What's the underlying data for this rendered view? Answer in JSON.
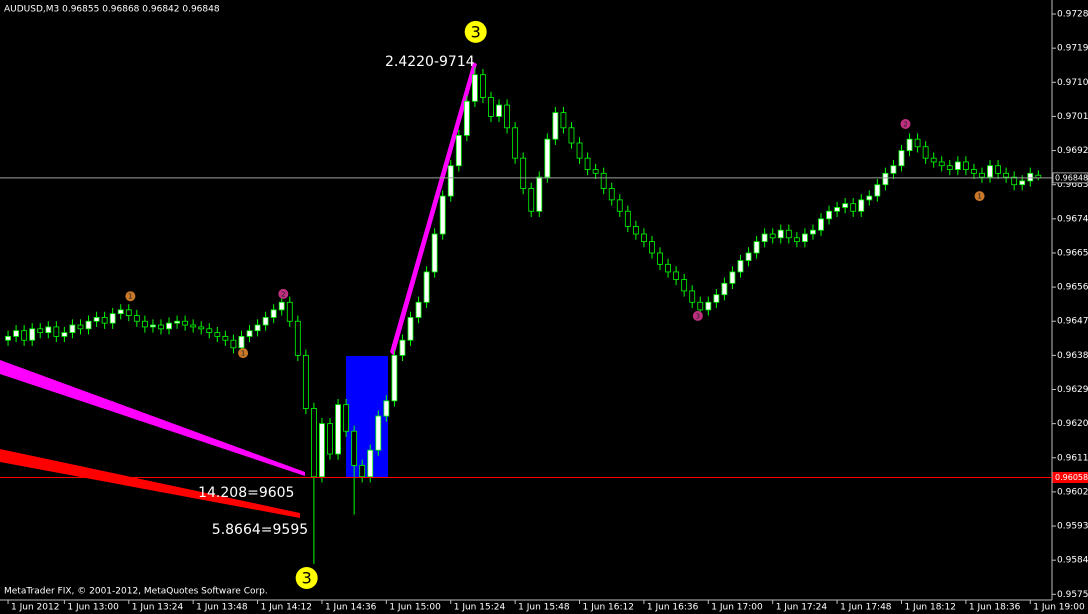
{
  "chart_data": {
    "type": "candlestick",
    "header": "AUDUSD,M3  0.96855 0.96868 0.96842 0.96848",
    "footer": "MetaTrader FIX, © 2001-2012, MetaQuotes Software Corp.",
    "up_color": "#ffffff",
    "down_color": "#000000",
    "wick_color": "#00ff00",
    "xlim": [
      -1,
      129.7
    ],
    "ylim": [
      0.95735,
      0.97317
    ],
    "xticks": [
      {
        "value": 0,
        "label": "1 Jun 2012"
      },
      {
        "value": 7,
        "label": "1 Jun 13:00"
      },
      {
        "value": 15,
        "label": "1 Jun 13:24"
      },
      {
        "value": 23,
        "label": "1 Jun 13:48"
      },
      {
        "value": 31,
        "label": "1 Jun 14:12"
      },
      {
        "value": 39,
        "label": "1 Jun 14:36"
      },
      {
        "value": 47,
        "label": "1 Jun 15:00"
      },
      {
        "value": 55,
        "label": "1 Jun 15:24"
      },
      {
        "value": 63,
        "label": "1 Jun 15:48"
      },
      {
        "value": 71,
        "label": "1 Jun 16:12"
      },
      {
        "value": 79,
        "label": "1 Jun 16:36"
      },
      {
        "value": 87,
        "label": "1 Jun 17:00"
      },
      {
        "value": 95,
        "label": "1 Jun 17:24"
      },
      {
        "value": 103,
        "label": "1 Jun 17:48"
      },
      {
        "value": 111,
        "label": "1 Jun 18:12"
      },
      {
        "value": 119,
        "label": "1 Jun 18:36"
      },
      {
        "value": 127,
        "label": "1 Jun 19:00"
      }
    ],
    "yticks": [
      {
        "value": 0.9728,
        "label": "0.97280"
      },
      {
        "value": 0.9719,
        "label": "0.97190"
      },
      {
        "value": 0.971,
        "label": "0.97100"
      },
      {
        "value": 0.9701,
        "label": "0.97010"
      },
      {
        "value": 0.9692,
        "label": "0.96920"
      },
      {
        "value": 0.9683,
        "label": "0.96830"
      },
      {
        "value": 0.9674,
        "label": "0.96740"
      },
      {
        "value": 0.9665,
        "label": "0.96650"
      },
      {
        "value": 0.9656,
        "label": "0.96560"
      },
      {
        "value": 0.9647,
        "label": "0.96470"
      },
      {
        "value": 0.9638,
        "label": "0.96380"
      },
      {
        "value": 0.9629,
        "label": "0.96290"
      },
      {
        "value": 0.962,
        "label": "0.96200"
      },
      {
        "value": 0.9611,
        "label": "0.96110"
      },
      {
        "value": 0.9602,
        "label": "0.96020"
      },
      {
        "value": 0.9593,
        "label": "0.95930"
      },
      {
        "value": 0.9584,
        "label": "0.95840"
      },
      {
        "value": 0.9575,
        "label": "0.95750"
      }
    ],
    "levels": [
      {
        "value": 0.96848,
        "label": "0.96848",
        "color": "#a0a0a0"
      },
      {
        "value": 0.96058,
        "label": "0.96058",
        "color": "#ff0000"
      }
    ],
    "open": [
      0.9642,
      0.9643,
      0.96445,
      0.9642,
      0.9645,
      0.9644,
      0.96455,
      0.9643,
      0.9644,
      0.9646,
      0.9645,
      0.9647,
      0.9648,
      0.96465,
      0.9649,
      0.965,
      0.96485,
      0.9647,
      0.96455,
      0.9646,
      0.9645,
      0.96465,
      0.9647,
      0.9646,
      0.96455,
      0.9645,
      0.9644,
      0.9643,
      0.9642,
      0.964,
      0.9643,
      0.96445,
      0.9646,
      0.9648,
      0.965,
      0.9652,
      0.9647,
      0.9638,
      0.9624,
      0.9606,
      0.962,
      0.9612,
      0.9625,
      0.9618,
      0.9609,
      0.9606,
      0.9613,
      0.9622,
      0.9626,
      0.9638,
      0.9642,
      0.9648,
      0.9652,
      0.966,
      0.967,
      0.968,
      0.9688,
      0.9696,
      0.9705,
      0.9712,
      0.9706,
      0.9701,
      0.9704,
      0.9698,
      0.969,
      0.9682,
      0.9676,
      0.9685,
      0.9695,
      0.9702,
      0.9698,
      0.9694,
      0.969,
      0.9687,
      0.9686,
      0.9682,
      0.9679,
      0.9676,
      0.9672,
      0.967,
      0.9668,
      0.9665,
      0.9662,
      0.966,
      0.9658,
      0.9655,
      0.9652,
      0.965,
      0.9652,
      0.9654,
      0.9657,
      0.966,
      0.9663,
      0.9665,
      0.9668,
      0.967,
      0.9669,
      0.9671,
      0.9669,
      0.9668,
      0.967,
      0.9671,
      0.9674,
      0.9676,
      0.9677,
      0.9678,
      0.9676,
      0.9679,
      0.968,
      0.9683,
      0.9686,
      0.9688,
      0.9692,
      0.9695,
      0.9693,
      0.969,
      0.9689,
      0.9688,
      0.9687,
      0.9689,
      0.9687,
      0.9686,
      0.9685,
      0.9688,
      0.9686,
      0.9685,
      0.9683,
      0.9684,
      0.96855
    ],
    "high": [
      0.96445,
      0.9646,
      0.9646,
      0.96465,
      0.96465,
      0.9647,
      0.9647,
      0.96455,
      0.96475,
      0.96475,
      0.96485,
      0.96495,
      0.96495,
      0.96505,
      0.96515,
      0.96515,
      0.965,
      0.96485,
      0.96475,
      0.96475,
      0.9648,
      0.96485,
      0.96485,
      0.96475,
      0.9647,
      0.96465,
      0.96455,
      0.96445,
      0.96435,
      0.96445,
      0.9646,
      0.96475,
      0.96495,
      0.96515,
      0.96535,
      0.96535,
      0.96485,
      0.96395,
      0.96255,
      0.96215,
      0.96215,
      0.96265,
      0.96265,
      0.96195,
      0.96105,
      0.96145,
      0.96235,
      0.96275,
      0.96395,
      0.96435,
      0.96495,
      0.96535,
      0.96615,
      0.96715,
      0.96815,
      0.96895,
      0.96975,
      0.97065,
      0.9714,
      0.97135,
      0.97075,
      0.97055,
      0.97055,
      0.96995,
      0.96915,
      0.96835,
      0.96865,
      0.96965,
      0.97035,
      0.97035,
      0.96995,
      0.96955,
      0.96915,
      0.96885,
      0.96875,
      0.96835,
      0.96805,
      0.96775,
      0.96735,
      0.96715,
      0.96695,
      0.96665,
      0.96635,
      0.96615,
      0.96595,
      0.96565,
      0.96535,
      0.96535,
      0.96555,
      0.96585,
      0.96615,
      0.96645,
      0.96665,
      0.96695,
      0.96715,
      0.96715,
      0.96725,
      0.96725,
      0.96705,
      0.96715,
      0.96725,
      0.96755,
      0.96775,
      0.96785,
      0.96795,
      0.96795,
      0.96805,
      0.96815,
      0.96845,
      0.96875,
      0.96895,
      0.96935,
      0.96965,
      0.96965,
      0.96945,
      0.96915,
      0.96905,
      0.96895,
      0.96905,
      0.96905,
      0.96885,
      0.96875,
      0.96895,
      0.96895,
      0.96875,
      0.96865,
      0.96855,
      0.96875,
      0.96868
    ],
    "low": [
      0.96405,
      0.96415,
      0.96405,
      0.96405,
      0.96425,
      0.96425,
      0.96415,
      0.96415,
      0.96425,
      0.96435,
      0.96435,
      0.96455,
      0.9645,
      0.9645,
      0.96475,
      0.9647,
      0.96455,
      0.9644,
      0.9644,
      0.96435,
      0.96435,
      0.9645,
      0.96445,
      0.9644,
      0.96435,
      0.96425,
      0.96415,
      0.96405,
      0.96385,
      0.96385,
      0.96415,
      0.9643,
      0.96445,
      0.96465,
      0.96485,
      0.96455,
      0.96365,
      0.96225,
      0.9583,
      0.96045,
      0.96105,
      0.96105,
      0.96165,
      0.9596,
      0.96045,
      0.96045,
      0.96115,
      0.96205,
      0.96245,
      0.96365,
      0.96405,
      0.96465,
      0.96505,
      0.96585,
      0.96685,
      0.96785,
      0.96865,
      0.96945,
      0.97035,
      0.97045,
      0.96995,
      0.96995,
      0.96965,
      0.96885,
      0.96805,
      0.96745,
      0.96745,
      0.96835,
      0.96935,
      0.96965,
      0.96925,
      0.96885,
      0.96855,
      0.96845,
      0.96805,
      0.96775,
      0.96745,
      0.96705,
      0.96685,
      0.96665,
      0.96635,
      0.96605,
      0.96585,
      0.96565,
      0.96535,
      0.96505,
      0.96485,
      0.96485,
      0.96505,
      0.96525,
      0.96555,
      0.96585,
      0.96615,
      0.96635,
      0.96665,
      0.96675,
      0.96675,
      0.96675,
      0.96665,
      0.96665,
      0.96685,
      0.96695,
      0.96725,
      0.96745,
      0.96755,
      0.96745,
      0.96745,
      0.96775,
      0.96785,
      0.96815,
      0.96845,
      0.96865,
      0.96905,
      0.96915,
      0.96885,
      0.96875,
      0.96865,
      0.96855,
      0.96855,
      0.96855,
      0.96845,
      0.96835,
      0.96835,
      0.96845,
      0.96835,
      0.96815,
      0.96815,
      0.96825,
      0.96842
    ],
    "close": [
      0.9643,
      0.96445,
      0.9642,
      0.9645,
      0.9644,
      0.96455,
      0.9643,
      0.9644,
      0.9646,
      0.9645,
      0.9647,
      0.9648,
      0.96465,
      0.9649,
      0.965,
      0.96485,
      0.9647,
      0.96455,
      0.9646,
      0.9645,
      0.96465,
      0.9647,
      0.9646,
      0.96455,
      0.9645,
      0.9644,
      0.9643,
      0.9642,
      0.964,
      0.9643,
      0.96445,
      0.9646,
      0.9648,
      0.965,
      0.9652,
      0.9647,
      0.9638,
      0.9624,
      0.9606,
      0.962,
      0.9612,
      0.9625,
      0.9618,
      0.9609,
      0.9606,
      0.9613,
      0.9622,
      0.9626,
      0.9638,
      0.9642,
      0.9648,
      0.9652,
      0.966,
      0.967,
      0.968,
      0.9688,
      0.9696,
      0.9705,
      0.9712,
      0.9706,
      0.9701,
      0.9704,
      0.9698,
      0.969,
      0.9682,
      0.9676,
      0.9685,
      0.9695,
      0.9702,
      0.9698,
      0.9694,
      0.969,
      0.9687,
      0.9686,
      0.9682,
      0.9679,
      0.9676,
      0.9672,
      0.967,
      0.9668,
      0.9665,
      0.9662,
      0.966,
      0.9658,
      0.9655,
      0.9652,
      0.965,
      0.9652,
      0.9654,
      0.9657,
      0.966,
      0.9663,
      0.9665,
      0.9668,
      0.967,
      0.9669,
      0.9671,
      0.9669,
      0.9668,
      0.967,
      0.9671,
      0.9674,
      0.9676,
      0.9677,
      0.9678,
      0.9676,
      0.9679,
      0.968,
      0.9683,
      0.9686,
      0.9688,
      0.9692,
      0.9695,
      0.9693,
      0.969,
      0.9689,
      0.9688,
      0.9687,
      0.9689,
      0.9687,
      0.9686,
      0.9685,
      0.9688,
      0.9686,
      0.9685,
      0.9683,
      0.9684,
      0.9686,
      0.96848
    ],
    "annotations": [
      {
        "text": "2.4220-9714",
        "x": 52.4,
        "y": 0.97153
      },
      {
        "text": "14.208=9605",
        "x": 29.6,
        "y": 0.96017
      },
      {
        "text": "5.8664=9595",
        "x": 31.3,
        "y": 0.95919
      }
    ],
    "wave_labels": [
      {
        "label": "3",
        "x": 58.1,
        "y": 0.97233,
        "color": "#ffff00"
      },
      {
        "label": "3",
        "x": 37.1,
        "y": 0.95793,
        "color": "#ffff00"
      }
    ],
    "markers": [
      {
        "label": "1",
        "x": 15.2,
        "y": 0.96536,
        "color": "#c87828"
      },
      {
        "label": "1",
        "x": 29.2,
        "y": 0.96386,
        "color": "#c87828"
      },
      {
        "label": "2",
        "x": 34.2,
        "y": 0.96542,
        "color": "#c03080"
      },
      {
        "label": "3",
        "x": 85.7,
        "y": 0.96484,
        "color": "#c03080"
      },
      {
        "label": "2",
        "x": 111.5,
        "y": 0.9699,
        "color": "#c03080"
      },
      {
        "label": "1",
        "x": 120.7,
        "y": 0.968,
        "color": "#c87828"
      }
    ]
  }
}
